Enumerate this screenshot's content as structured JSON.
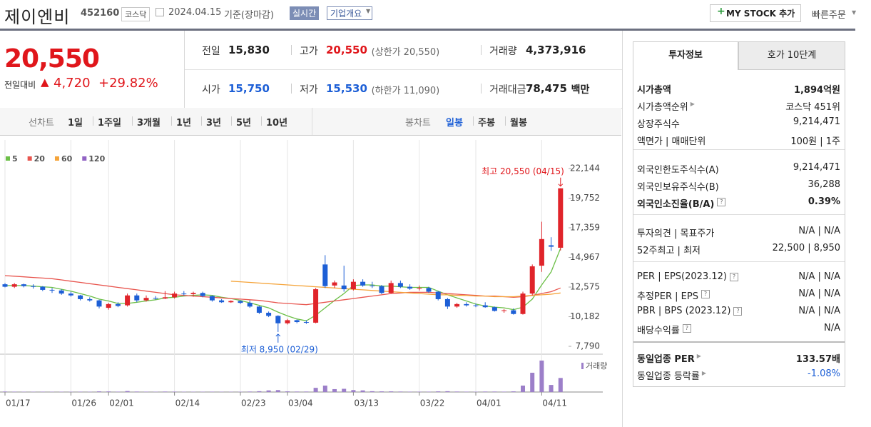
{
  "header": {
    "name": "제이엔비",
    "code": "452160",
    "market": "코스닥",
    "date": "2024.04.15",
    "basis": "기준(장마감)",
    "realtime": "실시간",
    "company": "기업개요",
    "mystock": "MY STOCK 추가",
    "quick_order": "빠른주문"
  },
  "quote": {
    "price": "20,550",
    "change_label": "전일대비",
    "change": "4,720",
    "change_rate": "+29.82%",
    "table": [
      [
        {
          "label": "전일",
          "value": "15,830"
        },
        {
          "label": "고가",
          "value": "20,550",
          "note": "(상한가 20,550)"
        },
        {
          "label": "거래량",
          "value": "4,373,916"
        }
      ],
      [
        {
          "label": "시가",
          "value": "15,750"
        },
        {
          "label": "저가",
          "value": "15,530",
          "note": "(하한가 11,090)"
        },
        {
          "label": "거래대금",
          "value": "78,475",
          "unit": "백만"
        }
      ]
    ]
  },
  "period_tabs": {
    "line_label": "선차트",
    "line": [
      "1일",
      "1주일",
      "3개월",
      "1년",
      "3년",
      "5년",
      "10년"
    ],
    "candle_label": "봉차트",
    "candle": [
      "일봉",
      "주봉",
      "월봉"
    ]
  },
  "chart_data": {
    "type": "candlestick",
    "categories": [
      "01/17",
      null,
      null,
      null,
      null,
      null,
      null,
      "01/26",
      null,
      null,
      null,
      "02/01",
      null,
      null,
      null,
      null,
      null,
      null,
      "02/14",
      null,
      null,
      null,
      null,
      null,
      null,
      "02/23",
      null,
      null,
      null,
      null,
      "03/04",
      null,
      null,
      null,
      null,
      null,
      null,
      "03/13",
      null,
      null,
      null,
      null,
      null,
      null,
      "03/22",
      null,
      null,
      null,
      null,
      null,
      "04/01",
      null,
      null,
      null,
      null,
      null,
      null,
      "04/11",
      null,
      null
    ],
    "open": [
      12800,
      12600,
      12800,
      12650,
      12600,
      12350,
      12300,
      12050,
      11900,
      11600,
      11500,
      10900,
      11200,
      11100,
      11900,
      11500,
      11700,
      11650,
      11750,
      12050,
      12000,
      12100,
      11850,
      11500,
      11350,
      11450,
      11300,
      11000,
      10500,
      10250,
      9650,
      9900,
      9750,
      9700,
      14400,
      12700,
      12700,
      12400,
      13000,
      12700,
      12650,
      12100,
      12900,
      12600,
      12450,
      12500,
      12200,
      11600,
      11000,
      11200,
      11100,
      11100,
      10950,
      10650,
      10700,
      10400,
      12050,
      14300,
      15950,
      15750
    ],
    "high": [
      12900,
      12900,
      12850,
      12800,
      12650,
      12500,
      12400,
      12200,
      11950,
      11750,
      11550,
      11300,
      11350,
      12050,
      12050,
      11900,
      11850,
      12250,
      12200,
      12250,
      12200,
      12200,
      11900,
      11600,
      11500,
      11500,
      11500,
      11050,
      10600,
      10300,
      10000,
      9950,
      9900,
      12500,
      15150,
      13100,
      14300,
      13200,
      13200,
      13000,
      12750,
      13100,
      13100,
      12800,
      12700,
      12600,
      12250,
      11700,
      11300,
      11350,
      11250,
      11350,
      11000,
      10800,
      10850,
      12200,
      14400,
      17850,
      16600,
      20550
    ],
    "low": [
      12550,
      12500,
      12550,
      12450,
      12250,
      12100,
      11950,
      11800,
      11500,
      11400,
      10850,
      10750,
      10950,
      11000,
      11350,
      11400,
      11550,
      11600,
      11650,
      11900,
      11800,
      11750,
      11400,
      11300,
      11300,
      11200,
      10900,
      10400,
      10150,
      8950,
      9550,
      9650,
      9600,
      9650,
      12500,
      12500,
      12200,
      12300,
      12600,
      12500,
      12000,
      12050,
      12500,
      12350,
      12300,
      12100,
      11500,
      10800,
      10900,
      11000,
      10950,
      10900,
      10600,
      10500,
      10350,
      10350,
      11900,
      13800,
      15500,
      15530
    ],
    "close": [
      12600,
      12800,
      12650,
      12600,
      12350,
      12300,
      12050,
      11900,
      11600,
      11500,
      11000,
      11200,
      11050,
      11900,
      11500,
      11700,
      11650,
      11750,
      12050,
      12000,
      12100,
      11850,
      11500,
      11350,
      11450,
      11300,
      11000,
      10500,
      10250,
      9650,
      9900,
      9750,
      9700,
      12400,
      12650,
      12950,
      12400,
      13000,
      12700,
      12650,
      12100,
      12900,
      12600,
      12450,
      12500,
      12200,
      11600,
      11000,
      11200,
      11100,
      11050,
      10950,
      10650,
      10700,
      10400,
      12050,
      14250,
      16450,
      15830,
      20550
    ],
    "volume": [
      150000,
      120000,
      100000,
      100000,
      120000,
      100000,
      110000,
      100000,
      120000,
      100000,
      200000,
      180000,
      120000,
      300000,
      150000,
      120000,
      100000,
      150000,
      130000,
      100000,
      100000,
      100000,
      120000,
      100000,
      90000,
      100000,
      150000,
      250000,
      500000,
      600000,
      200000,
      150000,
      150000,
      1300000,
      2000000,
      900000,
      1000000,
      600000,
      500000,
      250000,
      200000,
      200000,
      150000,
      120000,
      120000,
      120000,
      200000,
      250000,
      150000,
      120000,
      100000,
      150000,
      150000,
      120000,
      200000,
      2000000,
      6000000,
      9800000,
      2200000,
      4373916
    ],
    "series": [
      {
        "name": "5",
        "color": "#6cbf47",
        "values": [
          12700,
          12700,
          12700,
          12650,
          12600,
          12550,
          12400,
          12250,
          12050,
          11850,
          11600,
          11450,
          11250,
          11250,
          11350,
          11450,
          11550,
          11700,
          11750,
          11850,
          11900,
          11950,
          11900,
          11750,
          11650,
          11500,
          11300,
          11100,
          10900,
          10550,
          10250,
          10000,
          9850,
          10300,
          10900,
          11500,
          12050,
          12700,
          12750,
          12750,
          12650,
          12650,
          12600,
          12550,
          12550,
          12550,
          12250,
          11950,
          11700,
          11450,
          11200,
          11050,
          10950,
          10900,
          10750,
          10950,
          11600,
          12750,
          13800,
          15700
        ]
      },
      {
        "name": "20",
        "color": "#e8554e",
        "values": [
          13500,
          13450,
          13400,
          13350,
          13300,
          13250,
          13150,
          13050,
          12950,
          12850,
          12750,
          12650,
          12550,
          12450,
          12350,
          12250,
          12150,
          12050,
          11950,
          11900,
          11850,
          11800,
          11750,
          11700,
          11650,
          11600,
          11550,
          11500,
          11400,
          11300,
          11250,
          11200,
          11150,
          11250,
          11350,
          11450,
          11550,
          11650,
          11750,
          11850,
          11950,
          12050,
          12100,
          12150,
          12150,
          12150,
          12100,
          12050,
          12000,
          11950,
          11900,
          11850,
          11850,
          11800,
          11750,
          11800,
          11900,
          12050,
          12200,
          12500
        ]
      },
      {
        "name": "60",
        "color": "#f5a43a",
        "values": [
          null,
          null,
          null,
          null,
          null,
          null,
          null,
          null,
          null,
          null,
          null,
          null,
          null,
          null,
          null,
          null,
          null,
          null,
          null,
          null,
          null,
          null,
          null,
          null,
          13050,
          13000,
          12950,
          12900,
          12850,
          12800,
          12750,
          12700,
          12650,
          12600,
          12550,
          12500,
          12450,
          12400,
          12350,
          12300,
          12250,
          12200,
          12150,
          12100,
          12050,
          12000,
          11950,
          11950,
          11900,
          11900,
          11850,
          11850,
          11800,
          11800,
          11800,
          11850,
          11900,
          11950,
          12000,
          12100
        ]
      },
      {
        "name": "120",
        "color": "#9163c4",
        "values": [
          null,
          null,
          null,
          null,
          null,
          null,
          null,
          null,
          null,
          null,
          null,
          null,
          null,
          null,
          null,
          null,
          null,
          null,
          null,
          null,
          null,
          null,
          null,
          null,
          null,
          null,
          null,
          null,
          null,
          null,
          null,
          null,
          null,
          null,
          null,
          null,
          null,
          null,
          null,
          null,
          null,
          null,
          null,
          null,
          null,
          null,
          null,
          null,
          null,
          null,
          null,
          null,
          null,
          null,
          null,
          null,
          null,
          null,
          null,
          null
        ]
      }
    ],
    "up_color": "#e0242a",
    "down_color": "#1d5fd6",
    "ylim": [
      7330,
      23530
    ],
    "yticks": [
      {
        "value": 7790,
        "label": "7,790"
      },
      {
        "value": 10182,
        "label": "10,182"
      },
      {
        "value": 12575,
        "label": "12,575"
      },
      {
        "value": 14967,
        "label": "14,967"
      },
      {
        "value": 17359,
        "label": "17,359"
      },
      {
        "value": 19752,
        "label": "19,752"
      },
      {
        "value": 22144,
        "label": "22,144"
      }
    ],
    "y2lim": [
      0,
      10900000
    ],
    "volume_name": "거래량",
    "volume_color": "#9c7fc9",
    "high_annotation": "최고 20,550 (04/15)",
    "low_annotation": "최저 8,950 (02/29)"
  },
  "side": {
    "tabs": [
      "투자정보",
      "호가 10단계"
    ],
    "sections": [
      [
        {
          "label": "시가총액",
          "value": "1,894억원"
        },
        {
          "label": "시가총액순위",
          "value": "코스닥 451위"
        },
        {
          "label": "상장주식수",
          "value": "9,214,471"
        },
        {
          "label": "액면가 | 매매단위",
          "value": "100원 | 1주"
        }
      ],
      [
        {
          "label": "외국인한도주식수(A)",
          "value": "9,214,471"
        },
        {
          "label": "외국인보유주식수(B)",
          "value": "36,288"
        },
        {
          "label": "외국인소진율(B/A)",
          "value": "0.39%"
        }
      ],
      [
        {
          "label": "투자의견 | 목표주가",
          "value": "N/A | N/A"
        },
        {
          "label": "52주최고 | 최저",
          "value": "22,500 | 8,950"
        }
      ],
      [
        {
          "label": "PER | EPS(2023.12)",
          "value": "N/A | N/A"
        },
        {
          "label": "추정PER | EPS",
          "value": "N/A | N/A"
        },
        {
          "label": "PBR | BPS (2023.12)",
          "value": "N/A | N/A"
        },
        {
          "label": "배당수익률",
          "value": "N/A"
        }
      ],
      [
        {
          "label": "동일업종 PER",
          "value": "133.57배"
        },
        {
          "label": "동일업종 등락률",
          "value": "-1.08%"
        }
      ]
    ]
  }
}
